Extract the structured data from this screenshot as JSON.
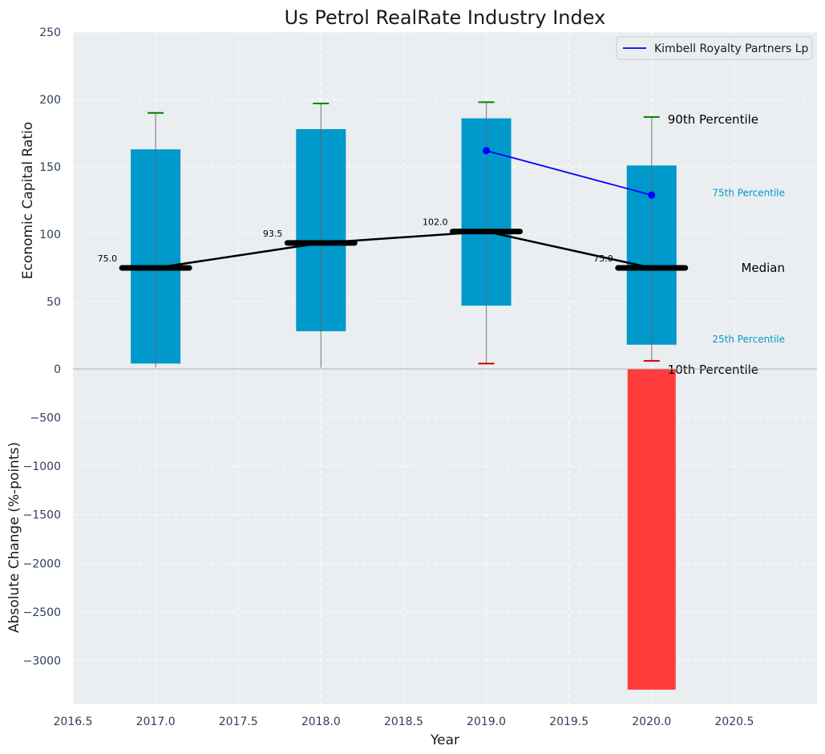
{
  "chart_data": [
    {
      "type": "box",
      "title": "Us Petrol RealRate Industry Index",
      "ylabel": "Economic Capital Ratio",
      "xlim": [
        2016.5,
        2021.0
      ],
      "ylim": [
        0,
        250
      ],
      "yticks": [
        0,
        50,
        100,
        150,
        200,
        250
      ],
      "grid": true,
      "categories": [
        2017.0,
        2018.0,
        2019.0,
        2020.0
      ],
      "percentile_10": [
        1,
        1,
        4,
        6
      ],
      "percentile_25": [
        4,
        28,
        47,
        18
      ],
      "median": [
        75.0,
        93.5,
        102.0,
        75.0
      ],
      "percentile_75": [
        163,
        178,
        186,
        151
      ],
      "percentile_90": [
        190,
        197,
        198,
        187
      ],
      "median_labels": [
        "75.0",
        "93.5",
        "102.0",
        "75.0"
      ],
      "band_labels": {
        "p90": "90th Percentile",
        "p75": "75th Percentile",
        "median": "Median",
        "p25": "25th Percentile",
        "p10": "10th Percentile"
      },
      "series": [
        {
          "name": "Kimbell Royalty Partners Lp",
          "x": [
            2019.0,
            2020.0
          ],
          "y": [
            162,
            129
          ],
          "color": "#0000ff"
        }
      ],
      "legend_position": "top-right",
      "colors": {
        "box": "#0099cc",
        "median_line": "#000000",
        "p90_cap": "#008000",
        "p10_cap": "#cc0000",
        "band_label_p75": "#0099cc"
      }
    },
    {
      "type": "bar",
      "ylabel": "Absolute Change (%-points)",
      "xlabel": "Year",
      "xlim": [
        2016.5,
        2021.0
      ],
      "xticks": [
        "2016.5",
        "2017.0",
        "2017.5",
        "2018.0",
        "2018.5",
        "2019.0",
        "2019.5",
        "2020.0",
        "2020.5"
      ],
      "ylim": [
        -3450,
        0
      ],
      "yticks": [
        "−500",
        "−1000",
        "−1500",
        "−2000",
        "−2500",
        "−3000"
      ],
      "grid": true,
      "x": [
        2020.0
      ],
      "values": [
        -3300
      ],
      "colors": {
        "bar": "#ff3b3b"
      }
    }
  ]
}
